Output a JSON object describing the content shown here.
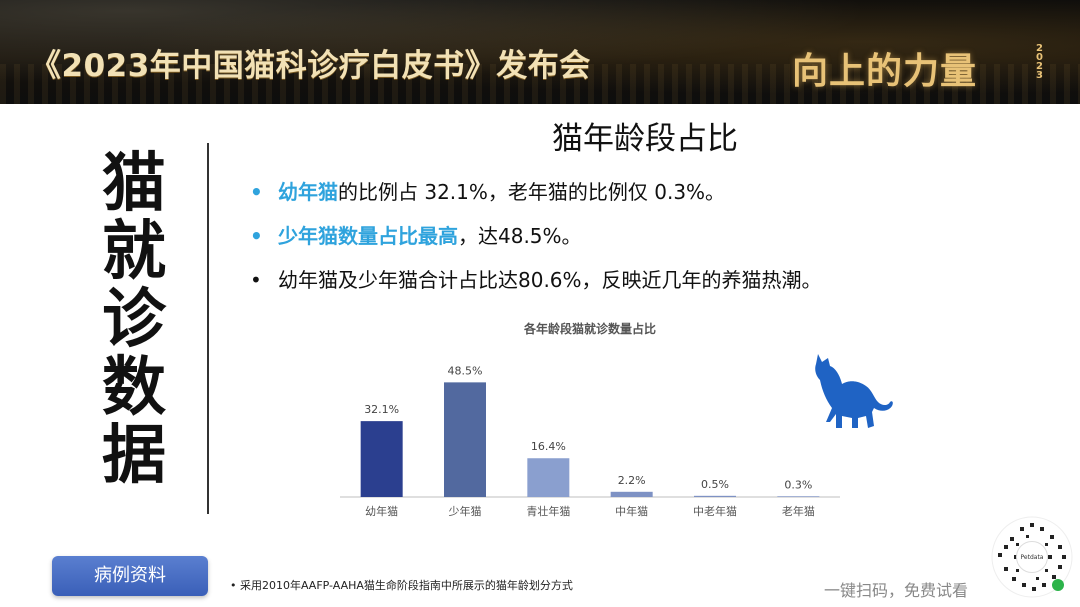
{
  "header": {
    "title": "《2023年中国猫科诊疗白皮书》发布会",
    "brand": "向上的力量",
    "brand_year": "2023"
  },
  "side_title": "猫就诊数据",
  "main_title": "猫年龄段占比",
  "bullets": [
    {
      "highlight": "幼年猫",
      "text": "的比例占 32.1%，老年猫的比例仅 0.3%。"
    },
    {
      "highlight": "少年猫数量占比最高",
      "text": "，达48.5%。"
    },
    {
      "highlight": "",
      "text": "幼年猫及少年猫合计占比达80.6%，反映近几年的养猫热潮。"
    }
  ],
  "chart_data": {
    "type": "bar",
    "title": "各年龄段猫就诊数量占比",
    "categories": [
      "幼年猫",
      "少年猫",
      "青壮年猫",
      "中年猫",
      "中老年猫",
      "老年猫"
    ],
    "values": [
      32.1,
      48.5,
      16.4,
      2.2,
      0.5,
      0.3
    ],
    "data_labels": [
      "32.1%",
      "48.5%",
      "16.4%",
      "2.2%",
      "0.5%",
      "0.3%"
    ],
    "colors": [
      "#2b3f8f",
      "#52699f",
      "#8a9fcf",
      "#7e92c4",
      "#7e92c4",
      "#7e92c4"
    ],
    "ylim": [
      0,
      55
    ],
    "grid": false,
    "xlabel": "",
    "ylabel": ""
  },
  "tag_label": "病例资料",
  "footnote": "•  采用2010年AAFP-AAHA猫生命阶段指南中所展示的猫年龄划分方式",
  "cta": "一键扫码，免费试看",
  "qr_center": "Petdata"
}
